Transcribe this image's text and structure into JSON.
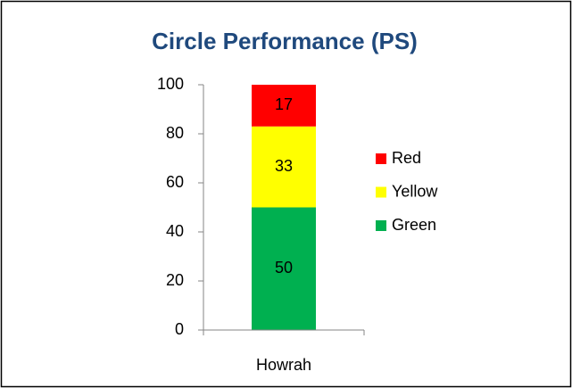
{
  "chart_data": {
    "type": "stacked_bar",
    "title": "Circle Performance (PS)",
    "categories": [
      "Howrah"
    ],
    "series": [
      {
        "name": "Green",
        "color": "#00b050",
        "values": [
          50
        ]
      },
      {
        "name": "Yellow",
        "color": "#ffff00",
        "values": [
          33
        ]
      },
      {
        "name": "Red",
        "color": "#ff0000",
        "values": [
          17
        ]
      }
    ],
    "ylim": [
      0,
      100
    ],
    "yticks": [
      0,
      20,
      40,
      60,
      80,
      100
    ],
    "legend": "right"
  }
}
